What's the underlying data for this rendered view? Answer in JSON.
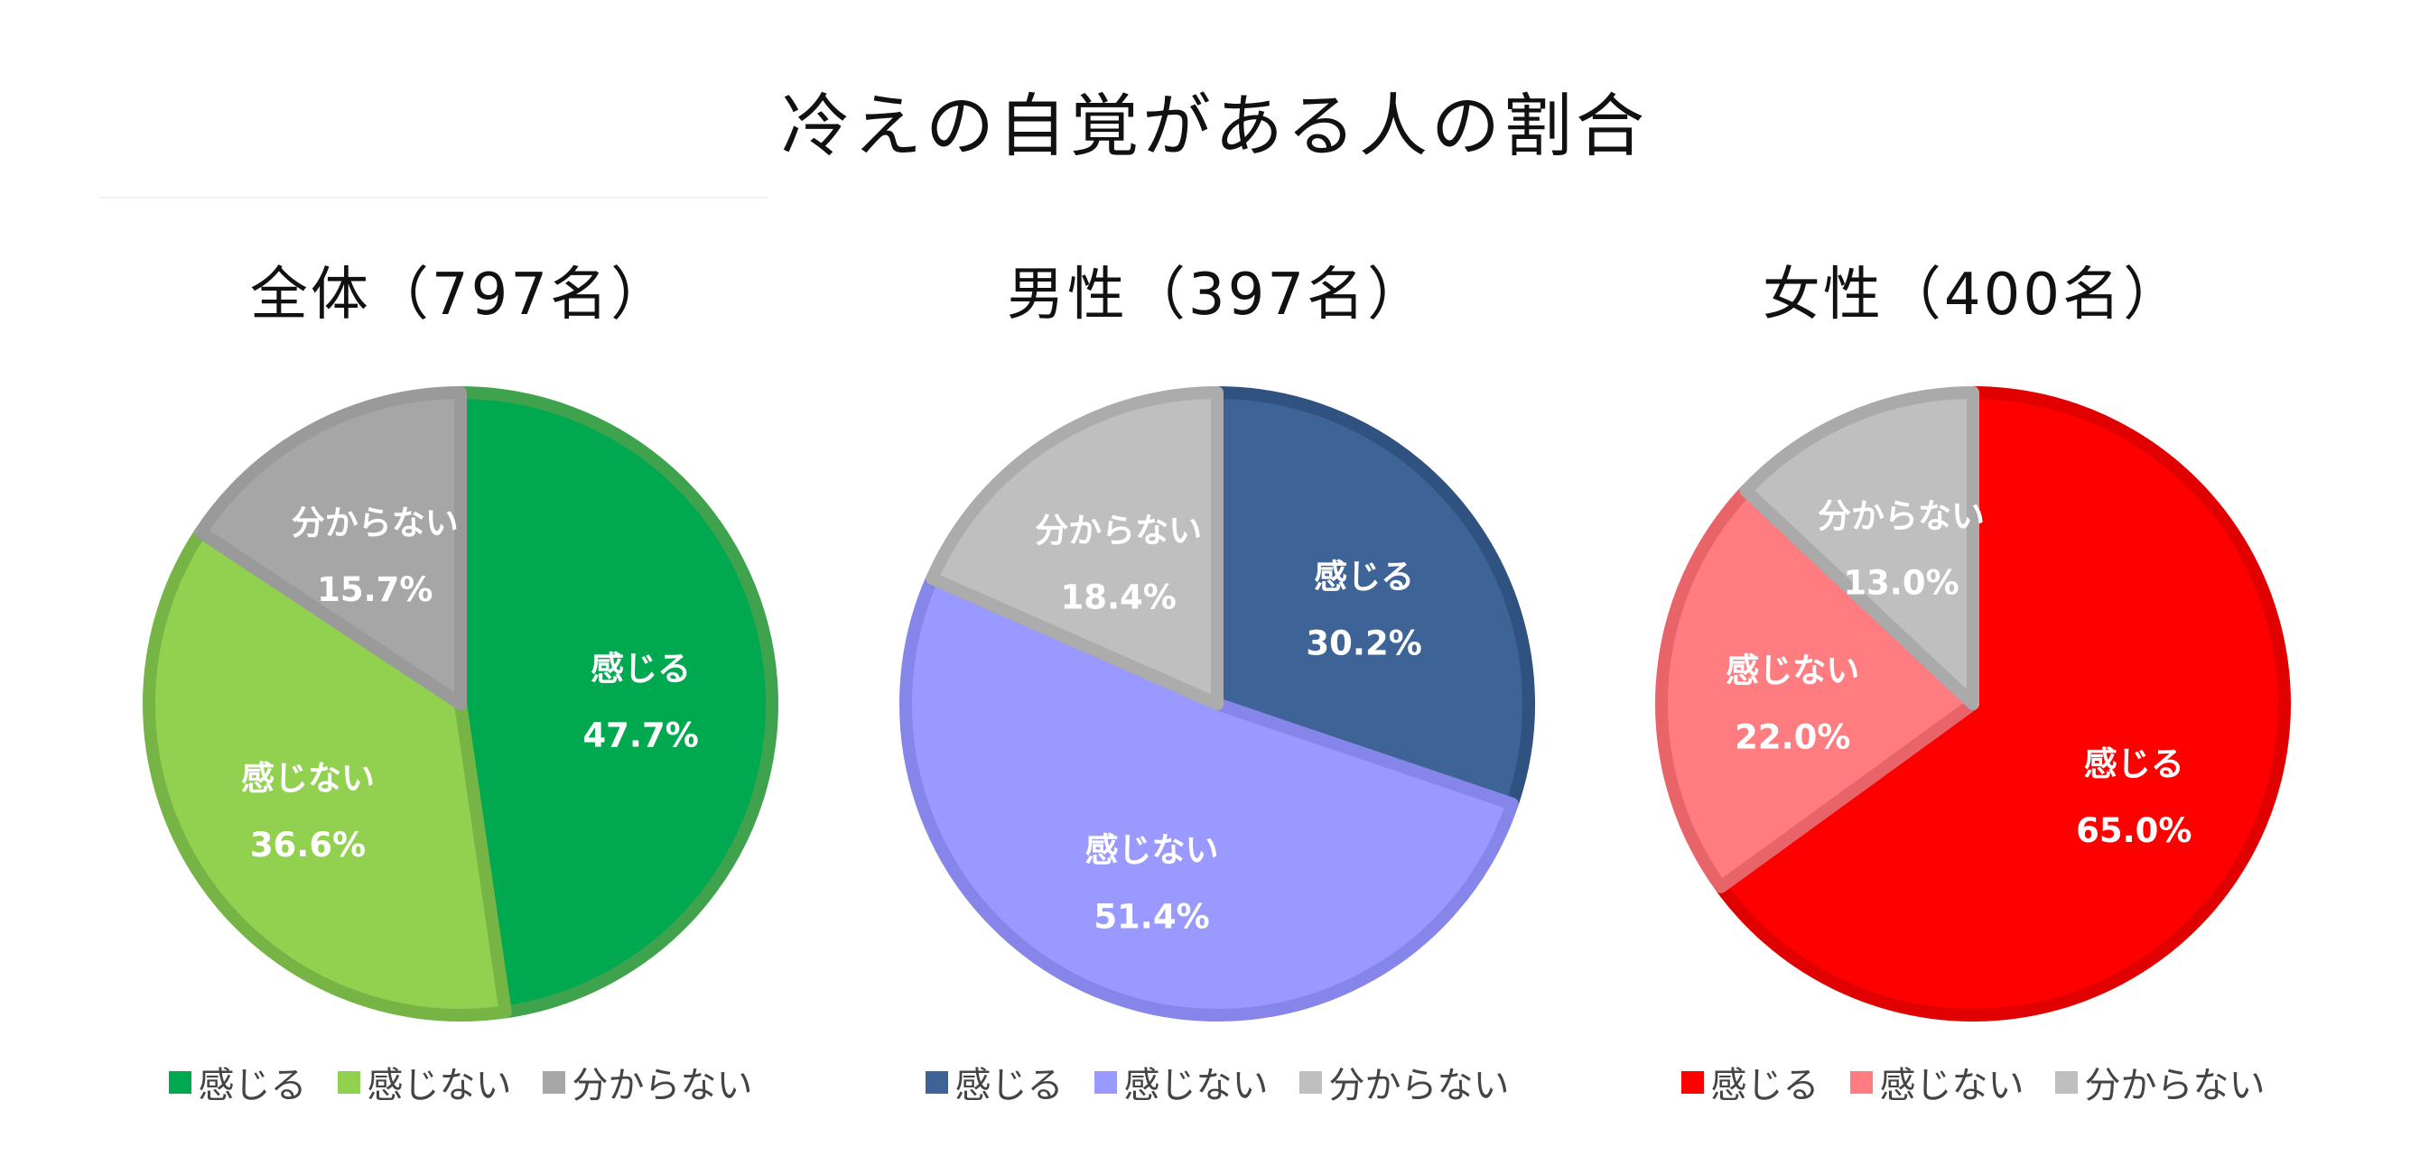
{
  "title": "冷えの自覚がある人の割合",
  "chart_data": [
    {
      "type": "pie",
      "title": "全体（797名）",
      "categories": [
        "感じる",
        "感じない",
        "分からない"
      ],
      "values": [
        47.7,
        36.6,
        15.7
      ],
      "value_labels": [
        "47.7%",
        "36.6%",
        "15.7%"
      ],
      "colors": [
        "#00a94f",
        "#92d050",
        "#a6a6a6"
      ],
      "border_colors": [
        "#3fa34d",
        "#76b545",
        "#9a9a9a"
      ],
      "legend": "bottom"
    },
    {
      "type": "pie",
      "title": "男性（397名）",
      "categories": [
        "感じる",
        "感じない",
        "分からない"
      ],
      "values": [
        30.2,
        51.4,
        18.4
      ],
      "value_labels": [
        "30.2%",
        "51.4%",
        "18.4%"
      ],
      "colors": [
        "#3d6397",
        "#9999ff",
        "#bfbfbf"
      ],
      "border_colors": [
        "#2f5281",
        "#8585ea",
        "#acacac"
      ],
      "legend": "bottom"
    },
    {
      "type": "pie",
      "title": "女性（400名）",
      "categories": [
        "感じる",
        "感じない",
        "分からない"
      ],
      "values": [
        65.0,
        22.0,
        13.0
      ],
      "value_labels": [
        "65.0%",
        "22.0%",
        "13.0%"
      ],
      "colors": [
        "#ff0000",
        "#ff7c80",
        "#bfbfbf"
      ],
      "border_colors": [
        "#e00000",
        "#e86468",
        "#aaaaaa"
      ],
      "legend": "bottom"
    }
  ]
}
